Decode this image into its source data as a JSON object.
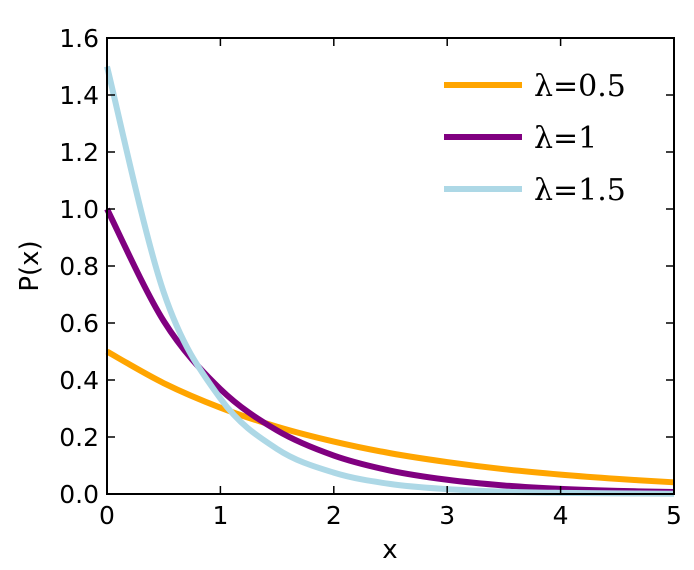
{
  "chart_data": {
    "type": "line",
    "title": "",
    "xlabel": "x",
    "ylabel": "P(x)",
    "xlim": [
      0,
      5
    ],
    "ylim": [
      0,
      1.6
    ],
    "x_ticks": [
      0,
      1,
      2,
      3,
      4,
      5
    ],
    "x_tick_labels": [
      "0",
      "1",
      "2",
      "3",
      "4",
      "5"
    ],
    "y_ticks": [
      0,
      0.2,
      0.4,
      0.6,
      0.8,
      1.0,
      1.2,
      1.4,
      1.6
    ],
    "y_tick_labels": [
      "0.0",
      "0.2",
      "0.4",
      "0.6",
      "0.8",
      "1.0",
      "1.2",
      "1.4",
      "1.6"
    ],
    "grid": false,
    "legend_position": "top-right",
    "series": [
      {
        "name": "λ=0.5",
        "color": "#ffa500",
        "x": [
          0,
          0.5,
          1,
          1.5,
          2,
          2.5,
          3,
          3.5,
          4,
          4.5,
          5
        ],
        "y": [
          0.5,
          0.389,
          0.303,
          0.236,
          0.184,
          0.143,
          0.112,
          0.087,
          0.068,
          0.053,
          0.041
        ]
      },
      {
        "name": "λ=1",
        "color": "#800080",
        "x": [
          0,
          0.5,
          1,
          1.5,
          2,
          2.5,
          3,
          3.5,
          4,
          4.5,
          5
        ],
        "y": [
          1.0,
          0.607,
          0.368,
          0.223,
          0.135,
          0.082,
          0.05,
          0.03,
          0.018,
          0.011,
          0.007
        ]
      },
      {
        "name": "λ=1.5",
        "color": "#add8e6",
        "x": [
          0,
          0.5,
          1,
          1.5,
          2,
          2.5,
          3,
          3.5,
          4,
          4.5,
          5
        ],
        "y": [
          1.5,
          0.708,
          0.335,
          0.158,
          0.075,
          0.035,
          0.017,
          0.008,
          0.004,
          0.002,
          0.001
        ]
      }
    ]
  }
}
